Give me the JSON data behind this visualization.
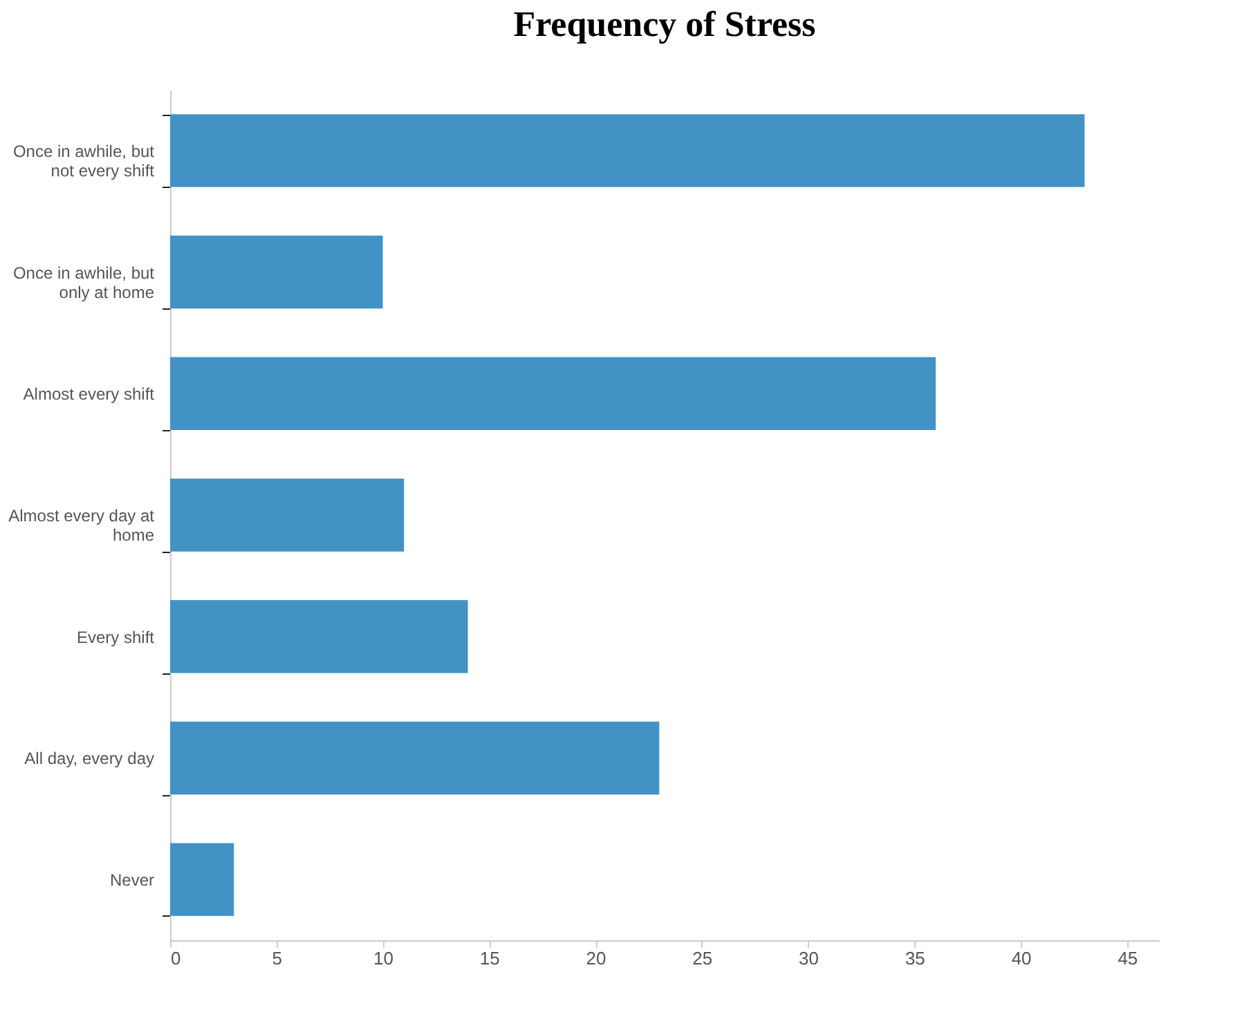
{
  "chart_data": {
    "type": "bar",
    "orientation": "horizontal",
    "title": "Frequency of Stress",
    "categories": [
      "Once in awhile, but not every shift",
      "Once in awhile, but only at home",
      "Almost every shift",
      "Almost every day at home",
      "Every shift",
      "All day, every day",
      "Never"
    ],
    "values": [
      43,
      10,
      36,
      11,
      14,
      23,
      3
    ],
    "color": "#4292c6",
    "xlim": [
      0,
      46.5
    ],
    "xticks": [
      0,
      5,
      10,
      15,
      20,
      25,
      30,
      35,
      40,
      45
    ],
    "grid": false
  }
}
